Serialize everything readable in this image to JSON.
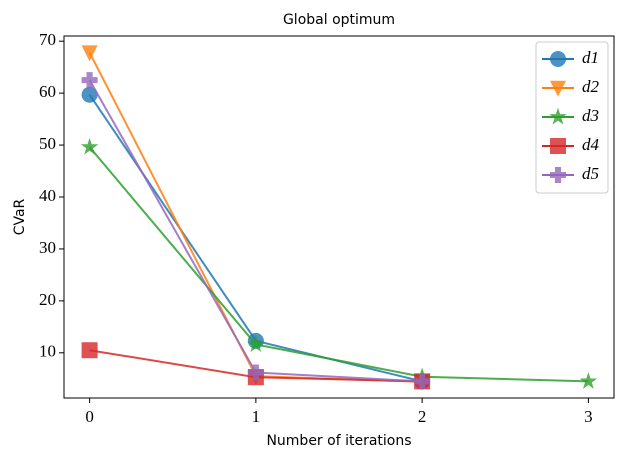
{
  "chart_data": {
    "type": "line",
    "title": "Global optimum",
    "x_label": "Number of iterations",
    "y_label": "CVaR",
    "xlim": [
      -0.154,
      3.154
    ],
    "ylim": [
      1.3,
      71
    ],
    "xticks": [
      0,
      1,
      2,
      3
    ],
    "yticks": [
      10,
      20,
      30,
      40,
      50,
      60,
      70
    ],
    "legend": "upper right",
    "series": [
      {
        "name": "d1",
        "color": "#1f77b4",
        "marker": "circle",
        "x": [
          0,
          1,
          2
        ],
        "values": [
          59.7,
          12.3,
          4.5
        ]
      },
      {
        "name": "d2",
        "color": "#ff7f0e",
        "marker": "triangle-down",
        "x": [
          0,
          1,
          2
        ],
        "values": [
          67.8,
          5.5,
          4.4
        ]
      },
      {
        "name": "d3",
        "color": "#2ca02c",
        "marker": "star",
        "x": [
          0,
          1,
          2,
          3
        ],
        "values": [
          49.6,
          11.6,
          5.4,
          4.5
        ]
      },
      {
        "name": "d4",
        "color": "#d62728",
        "marker": "square",
        "x": [
          0,
          1,
          2
        ],
        "values": [
          10.5,
          5.3,
          4.5
        ]
      },
      {
        "name": "d5",
        "color": "#9467bd",
        "marker": "plus",
        "x": [
          0,
          1,
          2
        ],
        "values": [
          62.5,
          6.2,
          4.5
        ]
      }
    ]
  }
}
